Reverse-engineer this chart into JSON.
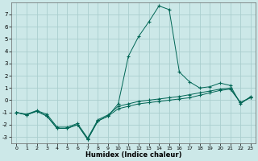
{
  "xlabel": "Humidex (Indice chaleur)",
  "bg_color": "#cce8e8",
  "grid_color": "#aacece",
  "line_color": "#006655",
  "xlim": [
    -0.5,
    23.5
  ],
  "ylim": [
    -3.5,
    8.0
  ],
  "yticks": [
    -3,
    -2,
    -1,
    0,
    1,
    2,
    3,
    4,
    5,
    6,
    7
  ],
  "xticks": [
    0,
    1,
    2,
    3,
    4,
    5,
    6,
    7,
    8,
    9,
    10,
    11,
    12,
    13,
    14,
    15,
    16,
    17,
    18,
    19,
    20,
    21,
    22,
    23
  ],
  "s1_x": [
    0,
    1,
    2,
    3,
    4,
    5,
    6,
    7,
    8,
    9,
    10,
    11,
    12,
    13,
    14,
    15,
    16,
    17,
    18,
    19,
    20,
    21,
    22,
    23
  ],
  "s1_y": [
    -1.0,
    -1.2,
    -0.9,
    -1.3,
    -2.3,
    -2.3,
    -2.0,
    -3.2,
    -1.7,
    -1.3,
    -0.7,
    -0.5,
    -0.3,
    -0.2,
    -0.1,
    0.0,
    0.1,
    0.2,
    0.4,
    0.6,
    0.8,
    0.9,
    -0.2,
    0.2
  ],
  "s2_x": [
    0,
    1,
    2,
    3,
    4,
    5,
    6,
    7,
    8,
    9,
    10,
    11,
    12,
    13,
    14,
    15,
    16,
    17,
    18,
    19,
    20,
    21,
    22,
    23
  ],
  "s2_y": [
    -1.0,
    -1.2,
    -0.9,
    -1.3,
    -2.3,
    -2.3,
    -2.0,
    -3.2,
    -1.7,
    -1.3,
    -0.3,
    3.6,
    5.2,
    6.4,
    7.7,
    7.4,
    2.3,
    1.5,
    1.0,
    1.1,
    1.4,
    1.2,
    -0.3,
    0.3
  ],
  "s3_x": [
    0,
    1,
    2,
    3,
    4,
    5,
    6,
    7,
    8,
    9,
    10,
    11,
    12,
    13,
    14,
    15,
    16,
    17,
    18,
    19,
    20,
    21,
    22,
    23
  ],
  "s3_y": [
    -1.0,
    -1.15,
    -0.85,
    -1.15,
    -2.2,
    -2.2,
    -1.9,
    -3.1,
    -1.6,
    -1.2,
    -0.5,
    -0.3,
    -0.1,
    0.0,
    0.1,
    0.2,
    0.3,
    0.45,
    0.6,
    0.75,
    0.9,
    1.0,
    -0.2,
    0.25
  ]
}
